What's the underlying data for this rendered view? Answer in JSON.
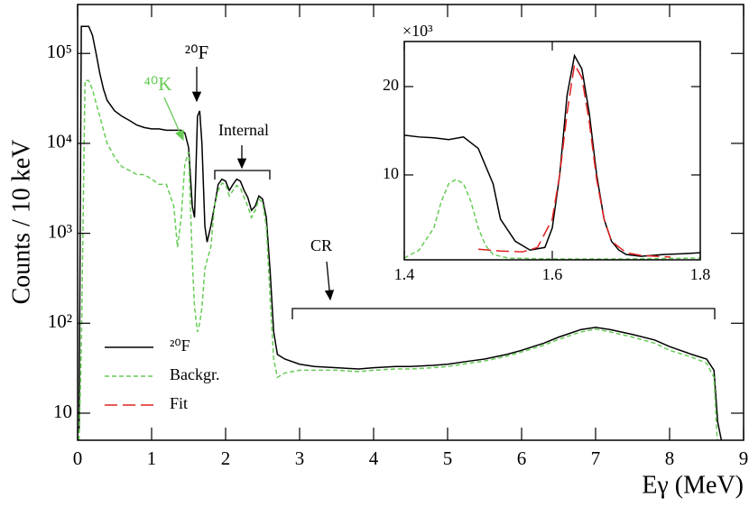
{
  "chart_data": [
    {
      "type": "line",
      "x_label": "Eγ (MeV)",
      "y_label": "Counts / 10 keV",
      "annotations": [
        "²⁰F",
        "⁴⁰K",
        "Internal",
        "CR"
      ],
      "x": [
        0.02,
        0.05,
        0.1,
        0.15,
        0.2,
        0.25,
        0.3,
        0.35,
        0.4,
        0.5,
        0.6,
        0.7,
        0.8,
        0.9,
        1.0,
        1.1,
        1.2,
        1.3,
        1.35,
        1.4,
        1.45,
        1.5,
        1.55,
        1.58,
        1.62,
        1.65,
        1.68,
        1.72,
        1.75,
        1.8,
        1.85,
        1.9,
        1.95,
        2.0,
        2.05,
        2.1,
        2.15,
        2.2,
        2.25,
        2.3,
        2.35,
        2.4,
        2.45,
        2.5,
        2.55,
        2.6,
        2.65,
        2.7,
        2.8,
        3.0,
        3.2,
        3.5,
        3.8,
        4.0,
        4.3,
        4.5,
        4.8,
        5.0,
        5.3,
        5.5,
        5.8,
        6.0,
        6.3,
        6.5,
        6.8,
        7.0,
        7.2,
        7.5,
        7.8,
        8.0,
        8.3,
        8.5,
        8.6,
        8.65,
        8.7
      ],
      "series": [
        {
          "name": "²⁰F",
          "color": "#000000",
          "values": [
            6,
            200000,
            200000,
            200000,
            160000,
            100000,
            60000,
            40000,
            30000,
            23000,
            20000,
            18000,
            16000,
            15000,
            14500,
            14500,
            14000,
            14000,
            14000,
            14000,
            13000,
            9000,
            2000,
            1500,
            20000,
            23000,
            10000,
            1200,
            800,
            1200,
            2000,
            3500,
            4000,
            3800,
            3000,
            3500,
            4000,
            3800,
            3000,
            2500,
            1800,
            2000,
            2600,
            2400,
            1500,
            400,
            80,
            45,
            40,
            35,
            33,
            32,
            31,
            32,
            33,
            33,
            34,
            35,
            38,
            40,
            45,
            50,
            60,
            70,
            85,
            90,
            85,
            75,
            65,
            55,
            45,
            40,
            30,
            8,
            5
          ]
        },
        {
          "name": "Backgr.",
          "color": "#66cc55",
          "dash": "5,3",
          "values": [
            5,
            50,
            50000,
            50000,
            40000,
            28000,
            20000,
            14000,
            10000,
            7000,
            5500,
            5000,
            4500,
            4500,
            4000,
            3500,
            3500,
            2000,
            700,
            1500,
            6000,
            8000,
            500,
            150,
            80,
            100,
            150,
            400,
            500,
            700,
            2000,
            3000,
            3600,
            3500,
            2600,
            3000,
            3400,
            3200,
            2500,
            2000,
            1500,
            1800,
            2400,
            2200,
            1200,
            200,
            40,
            25,
            28,
            30,
            30,
            30,
            29,
            30,
            31,
            31,
            32,
            33,
            36,
            38,
            43,
            48,
            57,
            66,
            80,
            86,
            80,
            70,
            60,
            50,
            42,
            36,
            25,
            4,
            3
          ]
        }
      ],
      "xlim": [
        0,
        9
      ],
      "ylim": [
        5,
        350000
      ],
      "log_y": true,
      "xticks": [
        0,
        1,
        2,
        3,
        4,
        5,
        6,
        7,
        8,
        9
      ],
      "yticks": [
        {
          "value": 10,
          "label": "10"
        },
        {
          "value": 100,
          "label": "10²"
        },
        {
          "value": 1000,
          "label": "10³"
        },
        {
          "value": 10000,
          "label": "10⁴"
        },
        {
          "value": 100000,
          "label": "10⁵"
        }
      ]
    },
    {
      "type": "line",
      "y_multiplier": "×10³",
      "series": [
        {
          "color": "#000000",
          "x": [
            1.4,
            1.42,
            1.44,
            1.46,
            1.48,
            1.5,
            1.52,
            1.53,
            1.55,
            1.57,
            1.59,
            1.6,
            1.61,
            1.62,
            1.63,
            1.64,
            1.65,
            1.66,
            1.67,
            1.68,
            1.69,
            1.7,
            1.72,
            1.75,
            1.78,
            1.8
          ],
          "values": [
            14.5,
            14.3,
            14.2,
            14.0,
            14.3,
            13,
            9,
            5,
            2.5,
            1.5,
            1.8,
            4,
            10,
            19,
            23.5,
            22,
            17,
            10,
            5,
            2.5,
            1.5,
            1,
            0.8,
            1,
            1.1,
            1.2
          ]
        },
        {
          "color": "#66cc55",
          "dash": "5,3",
          "x": [
            1.4,
            1.42,
            1.44,
            1.45,
            1.46,
            1.47,
            1.48,
            1.49,
            1.5,
            1.51,
            1.52,
            1.54,
            1.6,
            1.7,
            1.8
          ],
          "values": [
            0.6,
            1.5,
            4,
            7,
            9,
            9.5,
            9,
            7,
            4,
            2,
            1,
            0.6,
            0.5,
            0.5,
            0.6
          ]
        },
        {
          "name": "Fit",
          "color": "#e02020",
          "dash": "14,6",
          "x": [
            1.5,
            1.53,
            1.56,
            1.58,
            1.6,
            1.61,
            1.62,
            1.63,
            1.64,
            1.65,
            1.66,
            1.67,
            1.68,
            1.7,
            1.72,
            1.76
          ],
          "values": [
            1.6,
            1.4,
            1.3,
            1.8,
            5,
            10,
            17,
            22.5,
            21,
            16,
            9.5,
            5,
            2.5,
            1.2,
            0.9,
            0.7
          ]
        }
      ],
      "xlim": [
        1.4,
        1.8
      ],
      "ylim": [
        0.4,
        25.1
      ],
      "xticks": [
        1.4,
        1.6,
        1.8
      ],
      "yticks": [
        10,
        20
      ]
    }
  ]
}
